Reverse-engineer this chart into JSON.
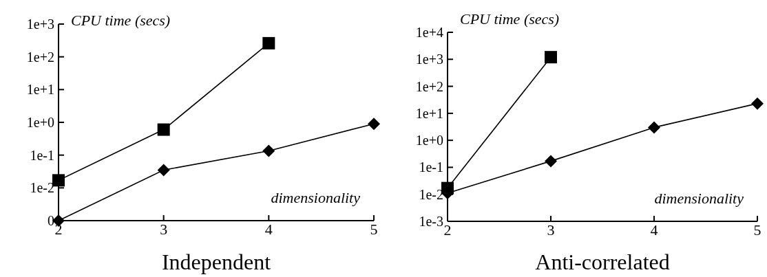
{
  "chart_data": [
    {
      "type": "line",
      "title": "Independent",
      "xlabel": "dimensionality",
      "ylabel": "CPU time (secs)",
      "log": "y",
      "x": [
        2,
        3,
        4,
        5
      ],
      "xlim": [
        2,
        5
      ],
      "xticks": [
        2,
        3,
        4,
        5
      ],
      "ylim": [
        0.001,
        1000
      ],
      "yticks": [
        {
          "value": 0.001,
          "label": "0"
        },
        {
          "value": 0.01,
          "label": "1e-2"
        },
        {
          "value": 0.1,
          "label": "1e-1"
        },
        {
          "value": 1,
          "label": "1e+0"
        },
        {
          "value": 10,
          "label": "1e+1"
        },
        {
          "value": 100,
          "label": "1e+2"
        },
        {
          "value": 1000,
          "label": "1e+3"
        }
      ],
      "grid": false,
      "series": [
        {
          "color": "#000000",
          "marker": "square",
          "values": [
            0.017,
            0.6,
            260,
            null
          ]
        },
        {
          "color": "#000000",
          "marker": "diamond",
          "values": [
            0.001,
            0.035,
            0.135,
            0.9
          ]
        }
      ]
    },
    {
      "type": "line",
      "title": "Anti-correlated",
      "xlabel": "dimensionality",
      "ylabel": "CPU time (secs)",
      "log": "y",
      "x": [
        2,
        3,
        4,
        5
      ],
      "xlim": [
        2,
        5
      ],
      "xticks": [
        2,
        3,
        4,
        5
      ],
      "ylim": [
        0.001,
        10000
      ],
      "yticks": [
        {
          "value": 0.001,
          "label": "1e-3"
        },
        {
          "value": 0.01,
          "label": "1e-2"
        },
        {
          "value": 0.1,
          "label": "1e-1"
        },
        {
          "value": 1,
          "label": "1e+0"
        },
        {
          "value": 10,
          "label": "1e+1"
        },
        {
          "value": 100,
          "label": "1e+2"
        },
        {
          "value": 1000,
          "label": "1e+3"
        },
        {
          "value": 10000,
          "label": "1e+4"
        }
      ],
      "grid": false,
      "series": [
        {
          "color": "#000000",
          "marker": "square",
          "values": [
            0.017,
            1200,
            null,
            null
          ]
        },
        {
          "color": "#000000",
          "marker": "diamond",
          "values": [
            0.011,
            0.17,
            3,
            23
          ]
        }
      ]
    }
  ]
}
